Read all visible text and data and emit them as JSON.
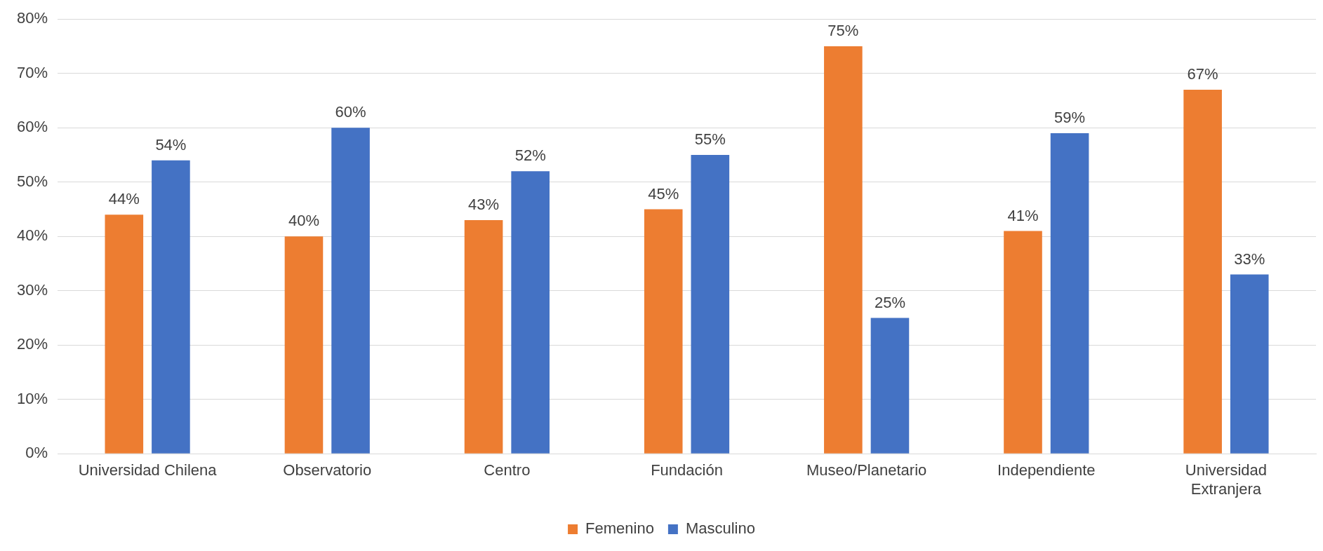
{
  "chart_data": {
    "type": "bar",
    "categories": [
      "Universidad Chilena",
      "Observatorio",
      "Centro",
      "Fundación",
      "Museo/Planetario",
      "Independiente",
      "Universidad Extranjera"
    ],
    "series": [
      {
        "name": "Femenino",
        "color": "#ed7d31",
        "values": [
          44,
          40,
          43,
          45,
          75,
          41,
          67
        ],
        "value_labels": [
          "44%",
          "40%",
          "43%",
          "45%",
          "75%",
          "41%",
          "67%"
        ]
      },
      {
        "name": "Masculino",
        "color": "#4472c4",
        "values": [
          54,
          60,
          52,
          55,
          25,
          59,
          33
        ],
        "value_labels": [
          "54%",
          "60%",
          "52%",
          "55%",
          "25%",
          "59%",
          "33%"
        ]
      }
    ],
    "ylim": [
      0,
      80
    ],
    "yticks": [
      {
        "value": 0,
        "label": "0%"
      },
      {
        "value": 10,
        "label": "10%"
      },
      {
        "value": 20,
        "label": "20%"
      },
      {
        "value": 30,
        "label": "30%"
      },
      {
        "value": 40,
        "label": "40%"
      },
      {
        "value": 50,
        "label": "50%"
      },
      {
        "value": 60,
        "label": "60%"
      },
      {
        "value": 70,
        "label": "70%"
      },
      {
        "value": 80,
        "label": "80%"
      }
    ],
    "grid": "y",
    "legend": "bottom"
  }
}
